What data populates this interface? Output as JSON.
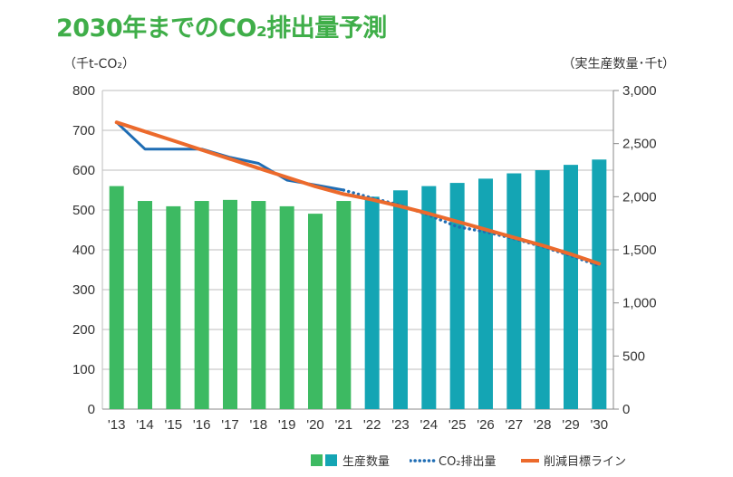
{
  "title": "2030年までのCO₂排出量予測",
  "left_unit": "（千t-CO₂）",
  "right_unit": "（実生産数量･千t）",
  "legend": {
    "production": "生産数量",
    "emissions": "CO₂排出量",
    "target": "削減目標ライン"
  },
  "colors": {
    "actual_bar": "#3dba62",
    "forecast_bar": "#14a5b4",
    "emission_line": "#1f6db4",
    "target_line": "#ec6a2c",
    "title": "#3fae49",
    "grid": "#bdbdbd"
  },
  "chart_data": {
    "type": "bar+line",
    "categories": [
      "'13",
      "'14",
      "'15",
      "'16",
      "'17",
      "'18",
      "'19",
      "'20",
      "'21",
      "'22",
      "'23",
      "'24",
      "'25",
      "'26",
      "'27",
      "'28",
      "'29",
      "'30"
    ],
    "y_left": {
      "label": "（千t-CO₂）",
      "ylim": [
        0,
        800
      ],
      "ticks": [
        "0",
        "100",
        "200",
        "300",
        "400",
        "500",
        "600",
        "700",
        "800"
      ]
    },
    "y_right": {
      "label": "（実生産数量･千t）",
      "ylim": [
        0,
        3000
      ],
      "ticks": [
        "0",
        "500",
        "1,000",
        "1,500",
        "2,000",
        "2,500",
        "3,000"
      ]
    },
    "series": [
      {
        "name": "生産数量",
        "type": "bar",
        "axis": "right",
        "values": [
          2100,
          1960,
          1910,
          1960,
          1970,
          1960,
          1910,
          1840,
          1960,
          2000,
          2060,
          2100,
          2130,
          2170,
          2220,
          2250,
          2300,
          2350
        ],
        "actual_count": 9
      },
      {
        "name": "CO₂排出量",
        "type": "line",
        "axis": "left",
        "values": [
          720,
          653,
          653,
          653,
          632,
          617,
          575,
          563,
          550,
          530,
          512,
          487,
          458,
          445,
          428,
          408,
          385,
          360
        ],
        "actual_count": 9
      },
      {
        "name": "削減目標ライン",
        "type": "line",
        "axis": "left",
        "values": [
          720,
          697,
          674,
          651,
          628,
          605,
          582,
          559,
          540,
          526,
          509,
          491,
          471,
          451,
          431,
          411,
          389,
          365
        ]
      }
    ],
    "grid": true
  }
}
